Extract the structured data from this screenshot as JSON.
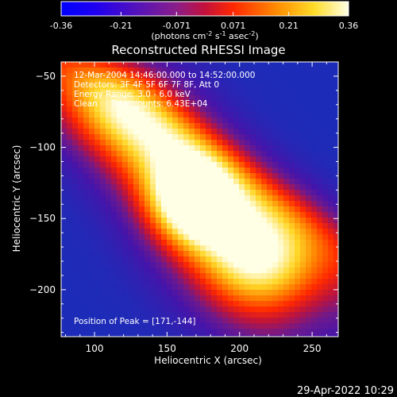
{
  "colorbar": {
    "ticks": [
      "-0.36",
      "-0.21",
      "-0.071",
      "0.071",
      "0.21",
      "0.36"
    ],
    "units_label": "(photons cm",
    "units_exp1": "-2",
    "units_mid": " s",
    "units_exp2": "-1",
    "units_end": " asec",
    "units_exp3": "-2",
    "units_close": ")",
    "min": -0.36,
    "max": 0.36
  },
  "chart_data": {
    "type": "heatmap",
    "title": "Reconstructed RHESSI Image",
    "xlabel": "Heliocentric X (arcsec)",
    "ylabel": "Heliocentric Y (arcsec)",
    "xlim": [
      77,
      268
    ],
    "ylim": [
      -233,
      -40
    ],
    "x_ticks": [
      100,
      150,
      200,
      250
    ],
    "y_ticks": [
      -50,
      -100,
      -150,
      -200
    ],
    "peak": [
      171,
      -144
    ],
    "annotations": [
      "12-Mar-2004 14:46:00.000 to 14:52:00.000",
      "Detectors: 3F 4F 5F 6F 7F 8F, Att 0",
      "Energy Range: 3.0 - 6.0 keV",
      "Clean     Total counts: 6.43E+04"
    ],
    "peak_label": "Position of Peak = [171,-144]"
  },
  "footer": {
    "date": "29-Apr-2022 10:29"
  }
}
